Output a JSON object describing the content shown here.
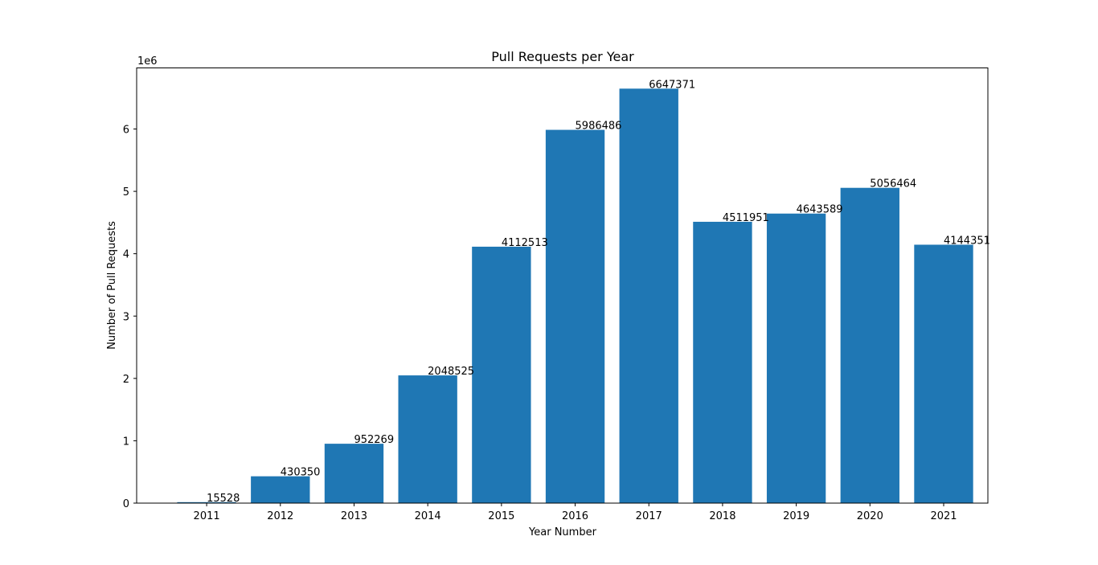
{
  "chart_data": {
    "type": "bar",
    "title": "Pull Requests per Year",
    "xlabel": "Year Number",
    "ylabel": "Number of Pull Requests",
    "y_offset_label": "1e6",
    "categories": [
      "2011",
      "2012",
      "2013",
      "2014",
      "2015",
      "2016",
      "2017",
      "2018",
      "2019",
      "2020",
      "2021"
    ],
    "values": [
      15528,
      430350,
      952269,
      2048525,
      4112513,
      5986486,
      6647371,
      4511951,
      4643589,
      5056464,
      4144351
    ],
    "data_labels": [
      "15528",
      "430350",
      "952269",
      "2048525",
      "4112513",
      "5986486",
      "6647371",
      "4511951",
      "4643589",
      "5056464",
      "4144351"
    ],
    "ylim": [
      0,
      6979739.55
    ],
    "yticks": [
      0,
      1000000,
      2000000,
      3000000,
      4000000,
      5000000,
      6000000
    ],
    "ytick_labels": [
      "0",
      "1",
      "2",
      "3",
      "4",
      "5",
      "6"
    ],
    "bar_color": "#1f77b4",
    "grid": false,
    "legend": "none"
  }
}
